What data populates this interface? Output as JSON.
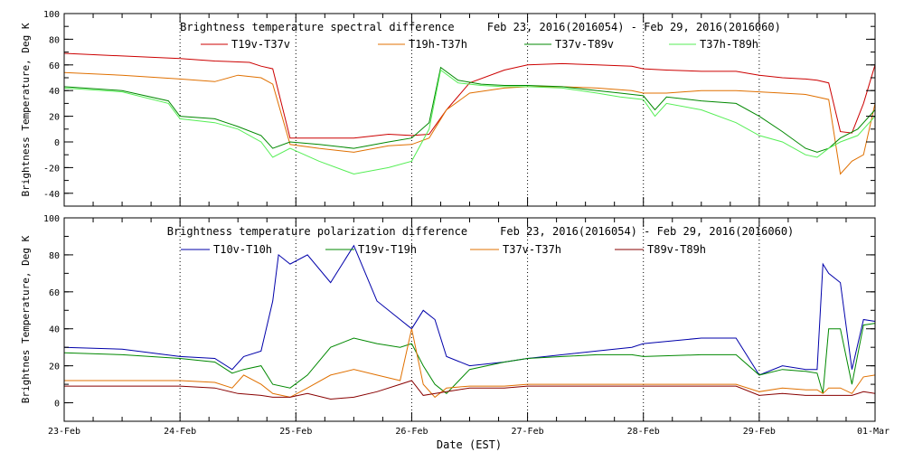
{
  "xaxis": {
    "label": "Date (EST)",
    "ticks": [
      "23-Feb",
      "24-Feb",
      "25-Feb",
      "26-Feb",
      "27-Feb",
      "28-Feb",
      "29-Feb",
      "01-Mar"
    ],
    "range_days": [
      0,
      7
    ]
  },
  "chart_data": [
    {
      "type": "line",
      "title": "Brightness temperature spectral difference     Feb 23, 2016(2016054) - Feb 29, 2016(2016060)",
      "ylabel": "Brightness Temperature, Deg K",
      "ylim": [
        -50,
        100
      ],
      "yticks": [
        -40,
        -20,
        0,
        20,
        40,
        60,
        80,
        100
      ],
      "grid": true,
      "legend": "top",
      "series": [
        {
          "name": "T19v-T37v",
          "color": "#cc0000",
          "x": [
            0,
            0.5,
            1,
            1.3,
            1.6,
            1.7,
            1.8,
            1.95,
            2.2,
            2.5,
            2.8,
            3.0,
            3.15,
            3.3,
            3.5,
            3.8,
            4.0,
            4.3,
            4.6,
            4.9,
            5.0,
            5.2,
            5.5,
            5.8,
            6.0,
            6.2,
            6.4,
            6.5,
            6.6,
            6.7,
            6.8,
            6.9,
            7.0
          ],
          "y": [
            69,
            67,
            65,
            63,
            62,
            59,
            57,
            3,
            3,
            3,
            6,
            5,
            6,
            25,
            46,
            56,
            60,
            61,
            60,
            59,
            57,
            56,
            55,
            55,
            52,
            50,
            49,
            48,
            46,
            8,
            7,
            30,
            60
          ]
        },
        {
          "name": "T19h-T37h",
          "color": "#e07000",
          "x": [
            0,
            0.5,
            1,
            1.3,
            1.5,
            1.7,
            1.8,
            1.95,
            2.2,
            2.5,
            2.8,
            3.0,
            3.15,
            3.3,
            3.5,
            3.8,
            4.0,
            4.3,
            4.6,
            4.9,
            5.0,
            5.2,
            5.5,
            5.8,
            6.0,
            6.2,
            6.4,
            6.5,
            6.6,
            6.7,
            6.8,
            6.9,
            7.0
          ],
          "y": [
            54,
            52,
            49,
            47,
            52,
            50,
            45,
            -2,
            -5,
            -8,
            -3,
            -2,
            3,
            25,
            38,
            42,
            43,
            43,
            42,
            40,
            38,
            38,
            40,
            40,
            39,
            38,
            37,
            35,
            33,
            -25,
            -15,
            -10,
            30
          ]
        },
        {
          "name": "T37v-T89v",
          "color": "#008800",
          "x": [
            0,
            0.5,
            0.9,
            1.0,
            1.3,
            1.5,
            1.7,
            1.8,
            1.95,
            2.2,
            2.5,
            2.8,
            3.0,
            3.15,
            3.25,
            3.4,
            3.6,
            3.8,
            4.0,
            4.3,
            4.6,
            4.8,
            5.0,
            5.1,
            5.2,
            5.5,
            5.8,
            6.0,
            6.2,
            6.4,
            6.5,
            6.6,
            6.7,
            6.85,
            7.0
          ],
          "y": [
            43,
            40,
            32,
            20,
            18,
            12,
            5,
            -5,
            0,
            -2,
            -5,
            0,
            3,
            15,
            58,
            48,
            45,
            44,
            44,
            43,
            40,
            38,
            36,
            25,
            35,
            32,
            30,
            20,
            8,
            -5,
            -8,
            -5,
            3,
            10,
            25
          ]
        },
        {
          "name": "T37h-T89h",
          "color": "#55ee55",
          "x": [
            0,
            0.5,
            0.9,
            1.0,
            1.3,
            1.5,
            1.7,
            1.8,
            1.95,
            2.2,
            2.5,
            2.8,
            3.0,
            3.15,
            3.25,
            3.4,
            3.6,
            3.8,
            4.0,
            4.3,
            4.6,
            4.8,
            5.0,
            5.1,
            5.2,
            5.5,
            5.8,
            6.0,
            6.2,
            6.4,
            6.5,
            6.6,
            6.7,
            6.85,
            7.0
          ],
          "y": [
            42,
            39,
            30,
            18,
            15,
            10,
            0,
            -12,
            -5,
            -15,
            -25,
            -20,
            -15,
            10,
            56,
            46,
            44,
            43,
            43,
            42,
            38,
            35,
            33,
            20,
            30,
            25,
            15,
            5,
            0,
            -10,
            -12,
            -5,
            0,
            5,
            20
          ]
        }
      ]
    },
    {
      "type": "line",
      "title": "Brightness temperature polarization difference     Feb 23, 2016(2016054) - Feb 29, 2016(2016060)",
      "ylabel": "Brightnes Temperature, Deg K",
      "ylim": [
        -10,
        100
      ],
      "yticks": [
        0,
        20,
        40,
        60,
        80,
        100
      ],
      "grid": true,
      "legend": "top",
      "series": [
        {
          "name": "T10v-T10h",
          "color": "#0000aa",
          "x": [
            0,
            0.5,
            1,
            1.3,
            1.45,
            1.55,
            1.7,
            1.8,
            1.85,
            1.95,
            2.1,
            2.3,
            2.5,
            2.7,
            2.9,
            3.0,
            3.1,
            3.2,
            3.3,
            3.5,
            3.8,
            4.0,
            4.3,
            4.6,
            4.9,
            5.0,
            5.5,
            5.8,
            6.0,
            6.2,
            6.4,
            6.5,
            6.55,
            6.6,
            6.7,
            6.8,
            6.9,
            7.0
          ],
          "y": [
            30,
            29,
            25,
            24,
            18,
            25,
            28,
            55,
            80,
            75,
            80,
            65,
            85,
            55,
            45,
            40,
            50,
            45,
            25,
            20,
            22,
            24,
            26,
            28,
            30,
            32,
            35,
            35,
            15,
            20,
            18,
            18,
            75,
            70,
            65,
            18,
            45,
            44
          ]
        },
        {
          "name": "T19v-T19h",
          "color": "#008800",
          "x": [
            0,
            0.5,
            1,
            1.3,
            1.45,
            1.55,
            1.7,
            1.8,
            1.95,
            2.1,
            2.3,
            2.5,
            2.7,
            2.9,
            3.0,
            3.1,
            3.2,
            3.3,
            3.5,
            3.8,
            4.0,
            4.3,
            4.6,
            4.9,
            5.0,
            5.5,
            5.8,
            6.0,
            6.2,
            6.4,
            6.5,
            6.55,
            6.6,
            6.7,
            6.8,
            6.9,
            7.0
          ],
          "y": [
            27,
            26,
            24,
            22,
            16,
            18,
            20,
            10,
            8,
            15,
            30,
            35,
            32,
            30,
            32,
            20,
            10,
            5,
            18,
            22,
            24,
            25,
            26,
            26,
            25,
            26,
            26,
            15,
            18,
            17,
            16,
            5,
            40,
            40,
            10,
            42,
            43
          ]
        },
        {
          "name": "T37v-T37h",
          "color": "#e07000",
          "x": [
            0,
            0.5,
            1,
            1.3,
            1.45,
            1.55,
            1.7,
            1.8,
            1.95,
            2.1,
            2.3,
            2.5,
            2.7,
            2.9,
            3.0,
            3.1,
            3.2,
            3.3,
            3.5,
            3.8,
            4.0,
            4.3,
            4.6,
            4.9,
            5.0,
            5.5,
            5.8,
            6.0,
            6.2,
            6.4,
            6.5,
            6.55,
            6.6,
            6.7,
            6.8,
            6.9,
            7.0
          ],
          "y": [
            12,
            12,
            12,
            11,
            8,
            15,
            10,
            5,
            3,
            8,
            15,
            18,
            15,
            12,
            40,
            10,
            3,
            8,
            9,
            9,
            10,
            10,
            10,
            10,
            10,
            10,
            10,
            6,
            8,
            7,
            7,
            5,
            8,
            8,
            5,
            14,
            15
          ]
        },
        {
          "name": "T89v-T89h",
          "color": "#880000",
          "x": [
            0,
            0.5,
            1,
            1.3,
            1.5,
            1.7,
            1.8,
            1.95,
            2.1,
            2.3,
            2.5,
            2.7,
            2.9,
            3.0,
            3.1,
            3.3,
            3.5,
            3.8,
            4.0,
            4.3,
            4.6,
            4.9,
            5.0,
            5.5,
            5.8,
            6.0,
            6.2,
            6.4,
            6.6,
            6.8,
            6.9,
            7.0
          ],
          "y": [
            9,
            9,
            9,
            8,
            5,
            4,
            3,
            3,
            5,
            2,
            3,
            6,
            10,
            12,
            4,
            6,
            8,
            8,
            9,
            9,
            9,
            9,
            9,
            9,
            9,
            4,
            5,
            4,
            4,
            4,
            6,
            5
          ]
        }
      ]
    }
  ]
}
